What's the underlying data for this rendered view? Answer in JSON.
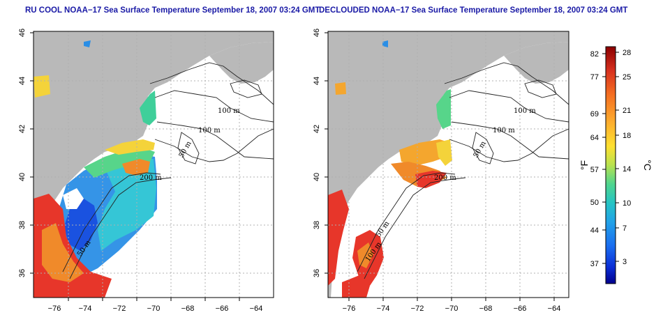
{
  "maps": [
    {
      "id": "left",
      "title": "RU COOL NOAA−17 Sea Surface Temperature September 18, 2007 03:24 GMT"
    },
    {
      "id": "right",
      "title": "DECLOUDED NOAA−17 Sea Surface Temperature September 18, 2007 03:24 GMT"
    }
  ],
  "axes": {
    "x_ticks": [
      "−76",
      "−74",
      "−72",
      "−70",
      "−68",
      "−66",
      "−64"
    ],
    "y_ticks": [
      "46",
      "44",
      "42",
      "40",
      "38",
      "36"
    ]
  },
  "contour_labels": [
    "100 m",
    "100 m",
    "50 m",
    "200 m",
    "50 m",
    "100 m"
  ],
  "colorbar": {
    "fahrenheit": [
      "82",
      "77",
      "69",
      "64",
      "57",
      "50",
      "44",
      "37"
    ],
    "celsius": [
      "28",
      "25",
      "21",
      "18",
      "14",
      "10",
      "7",
      "3"
    ],
    "unit_f": "°F",
    "unit_c": "°C",
    "colors": [
      "#8b0000",
      "#d7301f",
      "#f46d21",
      "#fdae2e",
      "#ffd830",
      "#e8f23c",
      "#a9e25b",
      "#4fd58e",
      "#25c4c4",
      "#22a2e8",
      "#1a6ef0",
      "#0b2ed6",
      "#00008c"
    ]
  }
}
